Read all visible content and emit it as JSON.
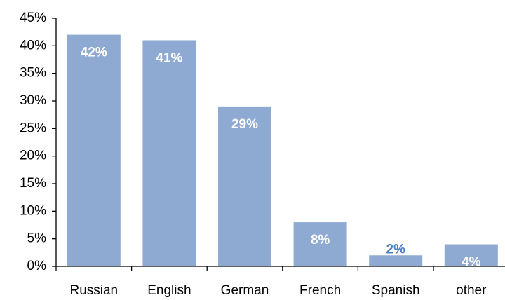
{
  "chart_data": {
    "type": "bar",
    "categories": [
      "Russian",
      "English",
      "German",
      "French",
      "Spanish",
      "other"
    ],
    "values": [
      42,
      41,
      29,
      8,
      2,
      4
    ],
    "value_labels": [
      "42%",
      "41%",
      "29%",
      "8%",
      "2%",
      "4%"
    ],
    "color": "#8eaad2",
    "ylim": [
      0,
      45
    ],
    "yticks": [
      {
        "value": 0,
        "label": "0%"
      },
      {
        "value": 5,
        "label": "5%"
      },
      {
        "value": 10,
        "label": "10%"
      },
      {
        "value": 15,
        "label": "15%"
      },
      {
        "value": 20,
        "label": "20%"
      },
      {
        "value": 25,
        "label": "25%"
      },
      {
        "value": 30,
        "label": "30%"
      },
      {
        "value": 35,
        "label": "35%"
      },
      {
        "value": 40,
        "label": "40%"
      },
      {
        "value": 45,
        "label": "45%"
      }
    ],
    "grid": false
  }
}
